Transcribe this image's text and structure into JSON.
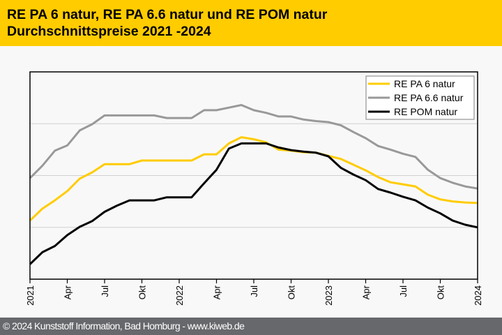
{
  "header": {
    "title_line1": "RE PA 6 natur, RE PA 6.6 natur und RE POM natur",
    "title_line2": "Durchschnittspreise 2021 -2024"
  },
  "footer": {
    "copyright": "© 2024 Kunststoff Information, Bad Homburg - www.kiweb.de"
  },
  "colors": {
    "header_bg": "#ffcc00",
    "footer_bg": "#67686c",
    "series_pa6": "#ffcc00",
    "series_pa66": "#999999",
    "series_pom": "#000000"
  },
  "chart_data": {
    "type": "line",
    "title": "RE PA 6 natur, RE PA 6.6 natur und RE POM natur Durchschnittspreise 2021 -2024",
    "xlabel": "",
    "ylabel": "",
    "y_units": "relative index (no y-axis labels shown)",
    "ylim": [
      0,
      4
    ],
    "grid": "horizontal",
    "legend_position": "top-right",
    "x_months": [
      "2021-01",
      "2021-02",
      "2021-03",
      "2021-04",
      "2021-05",
      "2021-06",
      "2021-07",
      "2021-08",
      "2021-09",
      "2021-10",
      "2021-11",
      "2021-12",
      "2022-01",
      "2022-02",
      "2022-03",
      "2022-04",
      "2022-05",
      "2022-06",
      "2022-07",
      "2022-08",
      "2022-09",
      "2022-10",
      "2022-11",
      "2022-12",
      "2023-01",
      "2023-02",
      "2023-03",
      "2023-04",
      "2023-05",
      "2023-06",
      "2023-07",
      "2023-08",
      "2023-09",
      "2023-10",
      "2023-11",
      "2023-12",
      "2024-01"
    ],
    "x_tick_labels": [
      "2021",
      "Apr",
      "Jul",
      "Okt",
      "2022",
      "Apr",
      "Jul",
      "Okt",
      "2023",
      "Apr",
      "Jul",
      "Okt",
      "2024"
    ],
    "series": [
      {
        "name": "RE PA 6 natur",
        "color": "#ffcc00",
        "values": [
          1.13,
          1.36,
          1.52,
          1.7,
          1.94,
          2.06,
          2.22,
          2.22,
          2.22,
          2.29,
          2.29,
          2.29,
          2.29,
          2.29,
          2.41,
          2.41,
          2.62,
          2.74,
          2.7,
          2.64,
          2.5,
          2.48,
          2.45,
          2.44,
          2.38,
          2.32,
          2.21,
          2.1,
          1.97,
          1.87,
          1.83,
          1.79,
          1.63,
          1.54,
          1.5,
          1.48,
          1.47
        ]
      },
      {
        "name": "RE PA 6.6 natur",
        "color": "#999999",
        "values": [
          1.95,
          2.19,
          2.48,
          2.58,
          2.87,
          2.99,
          3.16,
          3.16,
          3.16,
          3.16,
          3.16,
          3.11,
          3.11,
          3.11,
          3.26,
          3.26,
          3.31,
          3.36,
          3.26,
          3.21,
          3.14,
          3.14,
          3.08,
          3.05,
          3.03,
          2.97,
          2.84,
          2.72,
          2.57,
          2.5,
          2.42,
          2.36,
          2.11,
          1.95,
          1.86,
          1.79,
          1.75
        ]
      },
      {
        "name": "RE POM natur",
        "color": "#000000",
        "values": [
          0.29,
          0.52,
          0.64,
          0.85,
          1.01,
          1.12,
          1.3,
          1.42,
          1.52,
          1.52,
          1.52,
          1.58,
          1.58,
          1.58,
          1.85,
          2.11,
          2.52,
          2.62,
          2.62,
          2.62,
          2.54,
          2.49,
          2.46,
          2.44,
          2.37,
          2.15,
          2.02,
          1.91,
          1.74,
          1.67,
          1.59,
          1.52,
          1.38,
          1.27,
          1.13,
          1.05,
          1.0
        ]
      }
    ]
  }
}
